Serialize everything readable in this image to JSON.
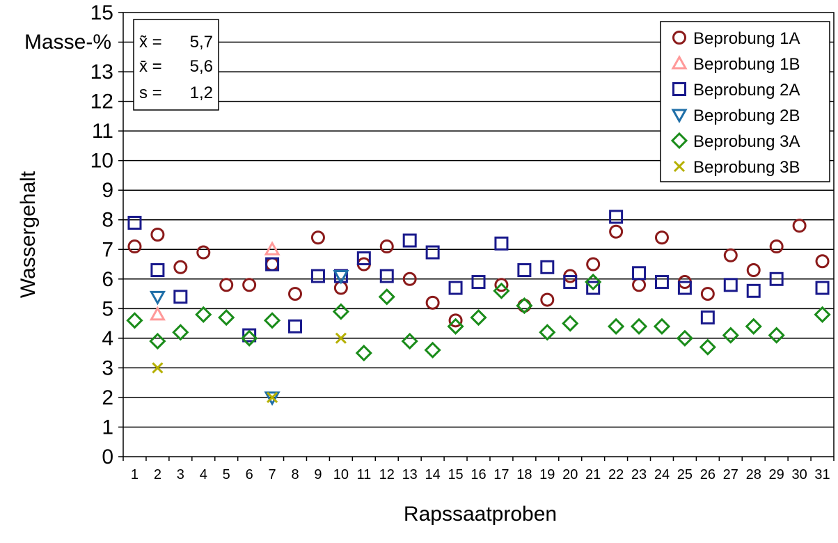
{
  "chart_data": {
    "type": "scatter",
    "xlabel": "Rapssaatproben",
    "ylabel": "Wassergehalt",
    "yunit": "Masse-%",
    "ylim": [
      0,
      15
    ],
    "yticks": [
      0,
      1,
      2,
      3,
      4,
      5,
      6,
      7,
      8,
      9,
      10,
      11,
      12,
      13,
      15
    ],
    "categories": [
      "1",
      "2",
      "3",
      "4",
      "5",
      "6",
      "7",
      "8",
      "9",
      "10",
      "11",
      "12",
      "13",
      "14",
      "15",
      "16",
      "17",
      "18",
      "19",
      "20",
      "21",
      "22",
      "23",
      "24",
      "25",
      "26",
      "27",
      "28",
      "29",
      "30",
      "31"
    ],
    "grid": "horizontal",
    "legend_position": "top-right",
    "stats": [
      {
        "label": "x̃ =",
        "value": "5,7"
      },
      {
        "label": "x̄ =",
        "value": "5,6"
      },
      {
        "label": "s =",
        "value": "1,2"
      }
    ],
    "series": [
      {
        "name": "Beprobung 1A",
        "marker": "circle",
        "color": "#8B1A1A",
        "points": [
          [
            1,
            7.1
          ],
          [
            2,
            7.5
          ],
          [
            3,
            6.4
          ],
          [
            4,
            6.9
          ],
          [
            5,
            5.8
          ],
          [
            6,
            5.8
          ],
          [
            7,
            6.5
          ],
          [
            8,
            5.5
          ],
          [
            9,
            7.4
          ],
          [
            10,
            5.7
          ],
          [
            11,
            6.5
          ],
          [
            12,
            7.1
          ],
          [
            13,
            6.0
          ],
          [
            14,
            5.2
          ],
          [
            15,
            4.6
          ],
          [
            17,
            5.8
          ],
          [
            18,
            5.1
          ],
          [
            19,
            5.3
          ],
          [
            20,
            6.1
          ],
          [
            21,
            6.5
          ],
          [
            22,
            7.6
          ],
          [
            23,
            5.8
          ],
          [
            24,
            7.4
          ],
          [
            25,
            5.9
          ],
          [
            26,
            5.5
          ],
          [
            27,
            6.8
          ],
          [
            28,
            6.3
          ],
          [
            29,
            7.1
          ],
          [
            30,
            7.8
          ],
          [
            31,
            6.6
          ]
        ]
      },
      {
        "name": "Beprobung 1B",
        "marker": "triangle-up",
        "color": "#FF9999",
        "points": [
          [
            2,
            4.8
          ],
          [
            7,
            7.0
          ]
        ]
      },
      {
        "name": "Beprobung 2A",
        "marker": "square",
        "color": "#1A1A8C",
        "points": [
          [
            1,
            7.9
          ],
          [
            2,
            6.3
          ],
          [
            3,
            5.4
          ],
          [
            6,
            4.1
          ],
          [
            7,
            6.5
          ],
          [
            8,
            4.4
          ],
          [
            9,
            6.1
          ],
          [
            10,
            6.1
          ],
          [
            11,
            6.7
          ],
          [
            12,
            6.1
          ],
          [
            13,
            7.3
          ],
          [
            14,
            6.9
          ],
          [
            15,
            5.7
          ],
          [
            16,
            5.9
          ],
          [
            17,
            7.2
          ],
          [
            18,
            6.3
          ],
          [
            19,
            6.4
          ],
          [
            20,
            5.9
          ],
          [
            21,
            5.7
          ],
          [
            22,
            8.1
          ],
          [
            23,
            6.2
          ],
          [
            24,
            5.9
          ],
          [
            25,
            5.7
          ],
          [
            26,
            4.7
          ],
          [
            27,
            5.8
          ],
          [
            28,
            5.6
          ],
          [
            29,
            6.0
          ],
          [
            31,
            5.7
          ]
        ]
      },
      {
        "name": "Beprobung 2B",
        "marker": "triangle-down",
        "color": "#1F6FA8",
        "points": [
          [
            2,
            5.4
          ],
          [
            7,
            2.0
          ],
          [
            10,
            6.1
          ]
        ]
      },
      {
        "name": "Beprobung 3A",
        "marker": "diamond",
        "color": "#1A8C1A",
        "points": [
          [
            1,
            4.6
          ],
          [
            2,
            3.9
          ],
          [
            3,
            4.2
          ],
          [
            4,
            4.8
          ],
          [
            5,
            4.7
          ],
          [
            6,
            4.0
          ],
          [
            7,
            4.6
          ],
          [
            10,
            4.9
          ],
          [
            11,
            3.5
          ],
          [
            12,
            5.4
          ],
          [
            13,
            3.9
          ],
          [
            14,
            3.6
          ],
          [
            15,
            4.4
          ],
          [
            16,
            4.7
          ],
          [
            17,
            5.6
          ],
          [
            18,
            5.1
          ],
          [
            19,
            4.2
          ],
          [
            20,
            4.5
          ],
          [
            21,
            5.9
          ],
          [
            22,
            4.4
          ],
          [
            23,
            4.4
          ],
          [
            24,
            4.4
          ],
          [
            25,
            4.0
          ],
          [
            26,
            3.7
          ],
          [
            27,
            4.1
          ],
          [
            28,
            4.4
          ],
          [
            29,
            4.1
          ],
          [
            31,
            4.8
          ]
        ]
      },
      {
        "name": "Beprobung 3B",
        "marker": "x",
        "color": "#B5B000",
        "points": [
          [
            2,
            3.0
          ],
          [
            7,
            2.0
          ],
          [
            10,
            4.0
          ]
        ]
      }
    ]
  }
}
